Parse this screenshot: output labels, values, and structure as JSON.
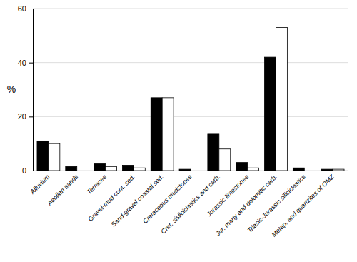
{
  "chart_data": {
    "type": "bar",
    "ylabel": "%",
    "categories": [
      "Alluvium",
      "Aeolian sands",
      "Terraces",
      "Gravel-mud cont. sed.",
      "Sand-gravel coastal sed.",
      "Cretaceous mudstones",
      "Cret. sisliciclastics and carb.",
      "Jurassic limestones",
      "Jur. marly and dolomitic carb.",
      "Triasic-Jurassic siliciclastics",
      "Metap. and quartzites of OMZ"
    ],
    "series": [
      {
        "color": "#000000",
        "values": [
          11,
          1.5,
          2.5,
          2,
          27,
          0.5,
          13.5,
          3,
          42,
          1,
          0.5
        ]
      },
      {
        "color": "#ffffff",
        "values": [
          10,
          0,
          1.5,
          1,
          27,
          0,
          8,
          1,
          53,
          0,
          0.5
        ]
      }
    ],
    "ylim": [
      0,
      60
    ],
    "yticks": [
      0,
      20,
      40,
      60
    ],
    "grid": true
  }
}
